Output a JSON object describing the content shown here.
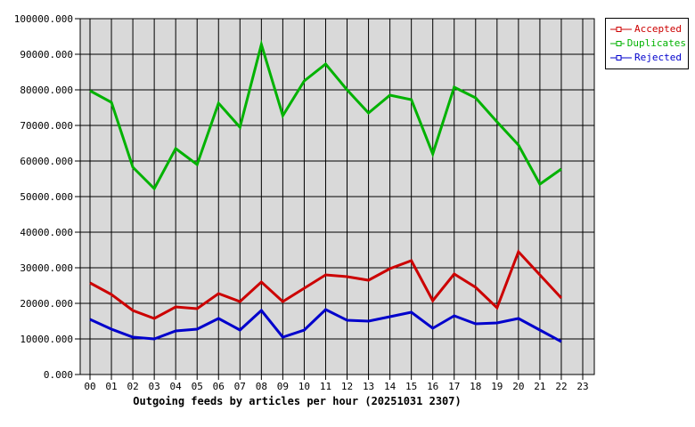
{
  "chart_data": {
    "type": "line",
    "title": "Outgoing feeds by articles per hour (20251031 2307)",
    "xlabel": "",
    "ylabel": "",
    "ylim": [
      0,
      100000
    ],
    "grid": true,
    "plot_background": "#d9d9d9",
    "grid_color": "#000000",
    "legend_position": "top-right-outside",
    "x_tick_labels": [
      "00",
      "01",
      "02",
      "03",
      "04",
      "05",
      "06",
      "07",
      "08",
      "09",
      "10",
      "11",
      "12",
      "13",
      "14",
      "15",
      "16",
      "17",
      "18",
      "19",
      "20",
      "21",
      "22",
      "23"
    ],
    "y_ticks": [
      0,
      10000,
      20000,
      30000,
      40000,
      50000,
      60000,
      70000,
      80000,
      90000,
      100000
    ],
    "y_tick_labels": [
      "0.000",
      "10000.000",
      "20000.000",
      "30000.000",
      "40000.000",
      "50000.000",
      "60000.000",
      "70000.000",
      "80000.000",
      "90000.000",
      "100000.000"
    ],
    "series": [
      {
        "name": "Accepted",
        "color": "#cc0000",
        "values": [
          25750,
          22500,
          18000,
          15750,
          19000,
          18500,
          22750,
          20500,
          26000,
          20500,
          24250,
          28000,
          27500,
          26500,
          29750,
          32000,
          20750,
          28250,
          24500,
          18750,
          34500,
          28000,
          21500
        ]
      },
      {
        "name": "Duplicates",
        "color": "#00b200",
        "values": [
          79750,
          76500,
          58250,
          52250,
          63500,
          59000,
          76250,
          69500,
          92750,
          72750,
          82500,
          87250,
          80000,
          73500,
          78500,
          77250,
          62000,
          80750,
          77750,
          71000,
          64500,
          53500,
          57750
        ]
      },
      {
        "name": "Rejected",
        "color": "#0000cc",
        "values": [
          15500,
          12750,
          10500,
          10000,
          12250,
          12750,
          15750,
          12500,
          18000,
          10500,
          12500,
          18250,
          15250,
          15000,
          16250,
          17500,
          13000,
          16500,
          14250,
          14500,
          15750,
          12500,
          9250
        ]
      }
    ]
  }
}
